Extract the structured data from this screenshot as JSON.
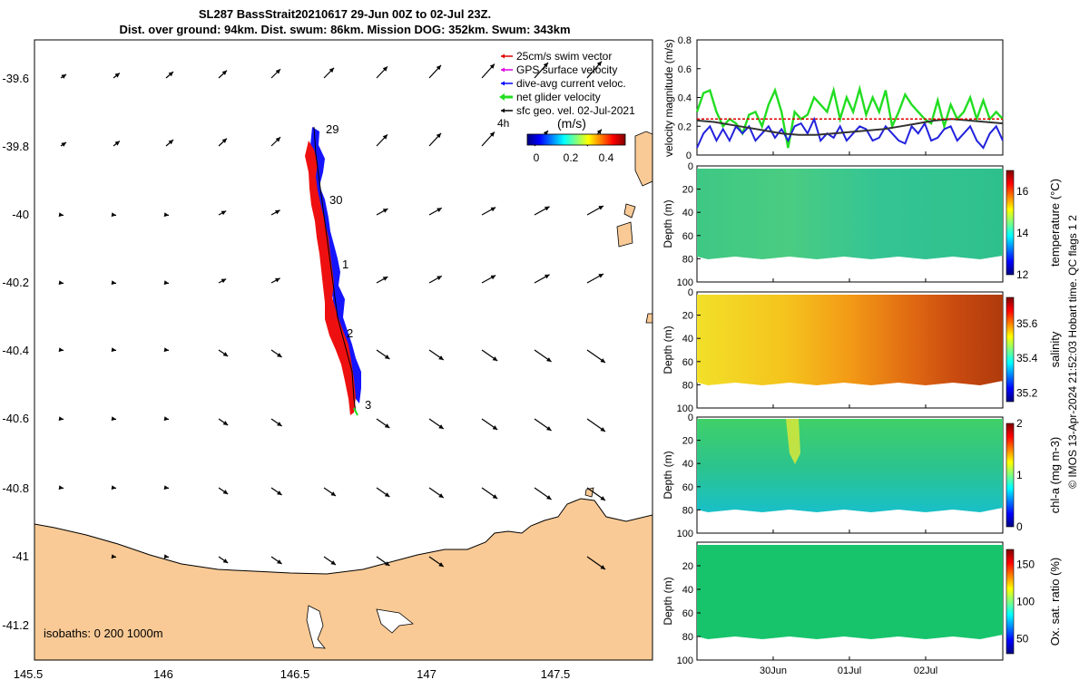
{
  "title": {
    "line1": "SL287 BassStrait20210617 29-Jun 00Z to 02-Jul 23Z.",
    "line2": "Dist. over ground: 94km. Dist. swum: 86km. Mission DOG: 352km. Swum: 343km"
  },
  "legend": {
    "items": [
      {
        "label": "25cm/s swim vector",
        "color": "#e00000"
      },
      {
        "label": "GPS surface velocity",
        "color": "#e000e0"
      },
      {
        "label": "dive-avg current veloc.",
        "color": "#0000ff"
      },
      {
        "label": "net glider velocity",
        "color": "#22dd22"
      },
      {
        "label": "sfc geo. vel. 02-Jul-2021",
        "color": "#000000"
      }
    ],
    "time_label": "4h",
    "colorbar_label": "(m/s)",
    "colorbar_ticks": [
      "0",
      "0.2",
      "0.4"
    ]
  },
  "map": {
    "x_ticks": [
      "145.5",
      "146",
      "146.5",
      "147",
      "147.5"
    ],
    "y_ticks": [
      "-39.6",
      "-39.8",
      "-40",
      "-40.2",
      "-40.4",
      "-40.6",
      "-40.8",
      "-41",
      "-41.2"
    ],
    "day_labels": [
      "29",
      "30",
      "1",
      "2",
      "3"
    ],
    "isobaths": "isobaths: 0   200  1000m"
  },
  "side_label": "© IMOS 13-Apr-2024 21:52:03 Hobart time. QC flags 1  2",
  "chart_data": [
    {
      "type": "line",
      "panel": "velocity",
      "ylabel": "velocity magnitude (m/s)",
      "ylim": [
        0,
        0.8
      ],
      "y_ticks": [
        "0",
        "0.2",
        "0.4",
        "0.6",
        "0.8"
      ],
      "x_ticks": [
        "30Jun",
        "01Jul",
        "02Jul"
      ],
      "series": [
        {
          "color": "#22dd22",
          "values": [
            0.3,
            0.43,
            0.45,
            0.3,
            0.2,
            0.25,
            0.22,
            0.15,
            0.28,
            0.3,
            0.2,
            0.35,
            0.45,
            0.3,
            0.05,
            0.3,
            0.25,
            0.28,
            0.4,
            0.35,
            0.3,
            0.45,
            0.25,
            0.4,
            0.3,
            0.46,
            0.28,
            0.4,
            0.3,
            0.45,
            0.2,
            0.3,
            0.42,
            0.35,
            0.3,
            0.25,
            0.22,
            0.38,
            0.2,
            0.35,
            0.25,
            0.3,
            0.4,
            0.25,
            0.38,
            0.25,
            0.3,
            0.25
          ]
        },
        {
          "color": "#2222dd",
          "values": [
            0.05,
            0.15,
            0.2,
            0.1,
            0.18,
            0.1,
            0.2,
            0.15,
            0.2,
            0.1,
            0.15,
            0.2,
            0.12,
            0.18,
            0.1,
            0.2,
            0.22,
            0.15,
            0.25,
            0.1,
            0.15,
            0.12,
            0.2,
            0.1,
            0.15,
            0.2,
            0.18,
            0.1,
            0.12,
            0.2,
            0.15,
            0.1,
            0.08,
            0.2,
            0.15,
            0.22,
            0.1,
            0.12,
            0.18,
            0.2,
            0.1,
            0.15,
            0.2,
            0.1,
            0.05,
            0.15,
            0.2,
            0.1
          ]
        },
        {
          "color": "#333333",
          "values": [
            0.24,
            0.23,
            0.21,
            0.19,
            0.17,
            0.15,
            0.14,
            0.14,
            0.15,
            0.16,
            0.17,
            0.18,
            0.2,
            0.22,
            0.24,
            0.25,
            0.24,
            0.23,
            0.22
          ]
        },
        {
          "color": "#e00000",
          "values": [
            0.25,
            0.25,
            0.25,
            0.25,
            0.25,
            0.25,
            0.25,
            0.25,
            0.25,
            0.25,
            0.25,
            0.25,
            0.25,
            0.25,
            0.25,
            0.25,
            0.25,
            0.25,
            0.25
          ]
        }
      ]
    },
    {
      "type": "heatmap",
      "panel": "temperature",
      "ylabel": "Depth (m)",
      "clabel": "temperature (°C)",
      "ylim": [
        100,
        0
      ],
      "y_ticks": [
        "0",
        "20",
        "40",
        "60",
        "80",
        "100"
      ],
      "clim": [
        12,
        17
      ],
      "c_ticks": [
        "12",
        "14",
        "16"
      ]
    },
    {
      "type": "heatmap",
      "panel": "salinity",
      "ylabel": "Depth (m)",
      "clabel": "salinity",
      "ylim": [
        100,
        0
      ],
      "y_ticks": [
        "0",
        "20",
        "40",
        "60",
        "80",
        "100"
      ],
      "clim": [
        35.15,
        35.75
      ],
      "c_ticks": [
        "35.2",
        "35.4",
        "35.6"
      ]
    },
    {
      "type": "heatmap",
      "panel": "chl-a",
      "ylabel": "Depth (m)",
      "clabel": "chl-a (mg m-3)",
      "ylim": [
        100,
        0
      ],
      "y_ticks": [
        "0",
        "20",
        "40",
        "60",
        "80",
        "100"
      ],
      "clim": [
        0,
        2
      ],
      "c_ticks": [
        "0",
        "1",
        "2"
      ]
    },
    {
      "type": "heatmap",
      "panel": "oxygen",
      "ylabel": "Depth (m)",
      "clabel": "Ox. sat. ratio (%)",
      "ylim": [
        100,
        0
      ],
      "y_ticks": [
        "20",
        "40",
        "60",
        "80",
        "100"
      ],
      "clim": [
        30,
        170
      ],
      "c_ticks": [
        "50",
        "100",
        "150"
      ]
    }
  ]
}
